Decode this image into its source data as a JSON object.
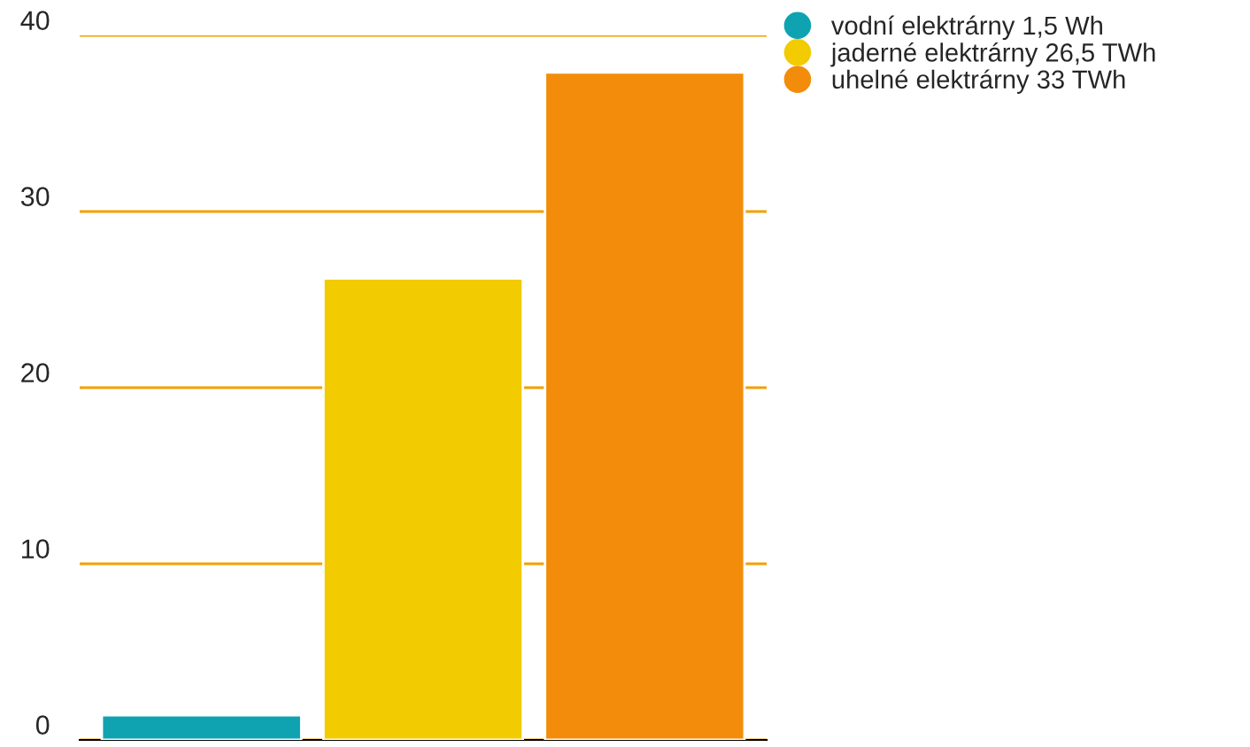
{
  "chart_data": {
    "type": "bar",
    "categories": [
      null,
      null,
      null
    ],
    "series": [
      {
        "name": "vodní elektrárny 1,5 Wh",
        "color": "#0fa3b1",
        "values": [
          1.4,
          null,
          null
        ]
      },
      {
        "name": "jaderné elektrárny 26,5 TWh",
        "color": "#f2cb00",
        "values": [
          null,
          26.2,
          null
        ]
      },
      {
        "name": "uhelné elektrárny 33 TWh",
        "color": "#f28c0a",
        "values": [
          null,
          null,
          37.9
        ]
      }
    ],
    "ylim": [
      0,
      40
    ],
    "yticks": [
      0,
      10,
      20,
      30,
      40
    ],
    "grid": "y",
    "legend": "top right"
  }
}
